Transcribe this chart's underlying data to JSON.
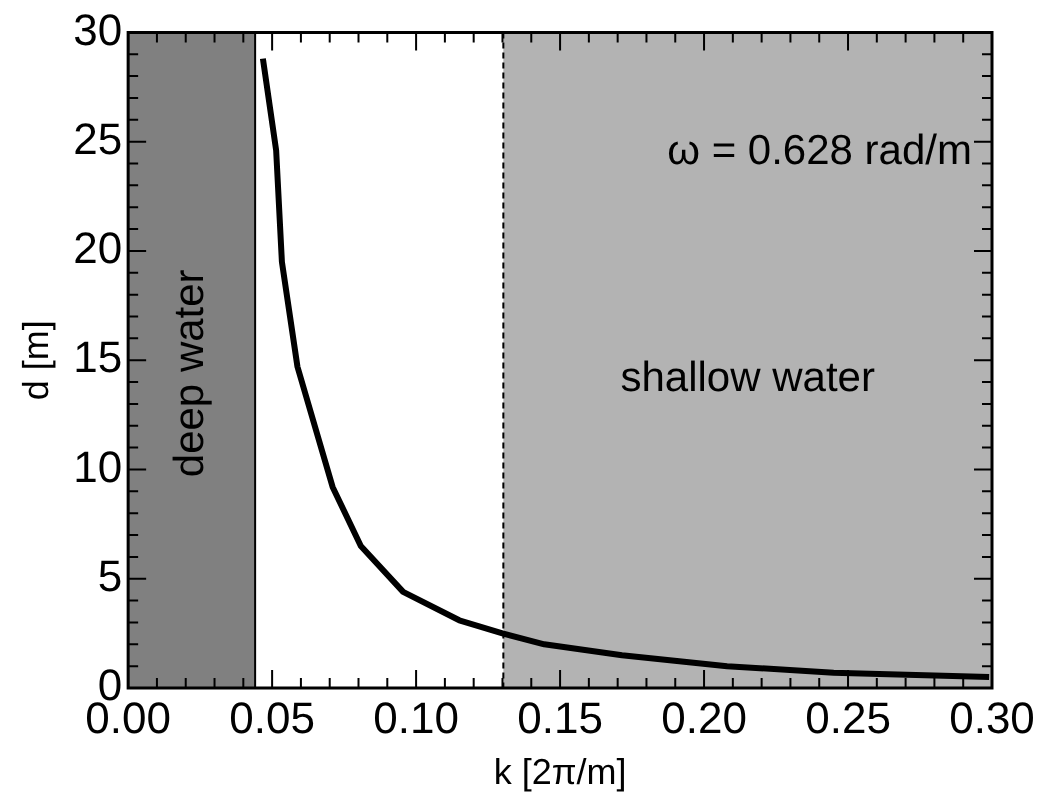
{
  "chart_data": {
    "type": "line",
    "xlabel": "k [2π/m]",
    "ylabel": "d [m]",
    "x": [
      0.0468,
      0.0514,
      0.0534,
      0.0588,
      0.071,
      0.0808,
      0.0955,
      0.115,
      0.13,
      0.1445,
      0.1715,
      0.208,
      0.245,
      0.299
    ],
    "series": [
      {
        "color": "#000000",
        "values": [
          28.8,
          24.6,
          19.5,
          14.7,
          9.2,
          6.5,
          4.4,
          3.1,
          2.5,
          2.0,
          1.5,
          1.0,
          0.7,
          0.5
        ]
      }
    ],
    "xlim": [
      0,
      0.3
    ],
    "xticks": [
      {
        "value": 0,
        "label": "0.00"
      },
      {
        "value": 0.05,
        "label": "0.05"
      },
      {
        "value": 0.1,
        "label": "0.10"
      },
      {
        "value": 0.15,
        "label": "0.15"
      },
      {
        "value": 0.2,
        "label": "0.20"
      },
      {
        "value": 0.25,
        "label": "0.25"
      },
      {
        "value": 0.3,
        "label": "0.30"
      }
    ],
    "ylim": [
      0,
      30
    ],
    "yticks": [
      0,
      5,
      10,
      15,
      20,
      25,
      30
    ],
    "bands": [
      {
        "axis": "x",
        "from": 0,
        "to": 0.0441,
        "label": "deep water",
        "color": "#808080"
      },
      {
        "axis": "x",
        "from": 0.1303,
        "to": 0.3,
        "label": "shallow water",
        "color": "#b3b3b3"
      }
    ],
    "ref_lines": [
      {
        "axis": "x",
        "value": 0.0441,
        "color": "#000000",
        "line_style": "solid"
      },
      {
        "axis": "x",
        "value": 0.1303,
        "color": "#000000",
        "line_style": "dashed"
      }
    ],
    "annotations": [
      "ω = 0.628 rad/m"
    ],
    "grid": false,
    "legend": false,
    "marker": "none",
    "line_style": "solid"
  }
}
